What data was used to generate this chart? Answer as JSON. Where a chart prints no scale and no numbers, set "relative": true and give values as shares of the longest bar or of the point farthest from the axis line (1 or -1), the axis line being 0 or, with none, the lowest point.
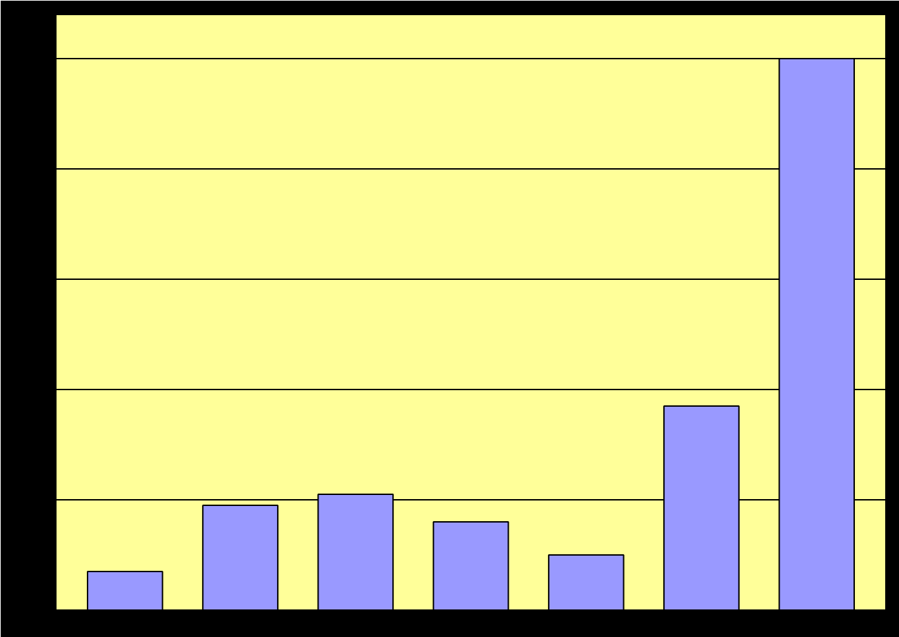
{
  "chart_data": {
    "type": "bar",
    "relative": true,
    "categories": [
      null,
      null,
      null,
      null,
      null,
      null,
      null
    ],
    "values": [
      0.07,
      0.19,
      0.21,
      0.16,
      0.1,
      0.37,
      1
    ],
    "color": "#9999ff",
    "grid": "y"
  }
}
